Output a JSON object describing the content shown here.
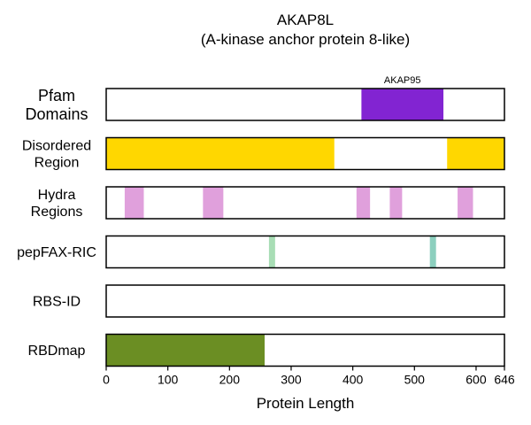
{
  "chart_data": {
    "type": "bar",
    "title": "AKAP8L",
    "subtitle": "(A-kinase anchor protein 8-like)",
    "xlabel": "Protein Length",
    "xlim": [
      0,
      646
    ],
    "xticks": [
      0,
      100,
      200,
      300,
      400,
      500,
      600,
      646
    ],
    "grid": "vertical dashed at major ticks",
    "tracks": [
      {
        "label": [
          "Pfam",
          "Domains"
        ],
        "segments": [
          {
            "start": 414,
            "end": 547,
            "color": "#8224d2",
            "annotation": "AKAP95"
          }
        ]
      },
      {
        "label": [
          "Disordered",
          "Region"
        ],
        "segments": [
          {
            "start": 0,
            "end": 370,
            "color": "#ffd700"
          },
          {
            "start": 553,
            "end": 646,
            "color": "#ffd700"
          }
        ]
      },
      {
        "label": [
          "Hydra",
          "Regions"
        ],
        "segments": [
          {
            "start": 30,
            "end": 61,
            "color": "#e0a0dc"
          },
          {
            "start": 157,
            "end": 190,
            "color": "#e0a0dc"
          },
          {
            "start": 406,
            "end": 428,
            "color": "#e0a0dc"
          },
          {
            "start": 460,
            "end": 480,
            "color": "#e0a0dc"
          },
          {
            "start": 570,
            "end": 595,
            "color": "#e0a0dc"
          }
        ]
      },
      {
        "label": [
          "pepFAX-RIC"
        ],
        "segments": [
          {
            "start": 264,
            "end": 274,
            "color": "#a8ddb5"
          },
          {
            "start": 525,
            "end": 535,
            "color": "#8ccfbe"
          }
        ]
      },
      {
        "label": [
          "RBS-ID"
        ],
        "segments": []
      },
      {
        "label": [
          "RBDmap"
        ],
        "segments": [
          {
            "start": 0,
            "end": 257,
            "color": "#6b8e23"
          }
        ]
      }
    ]
  }
}
